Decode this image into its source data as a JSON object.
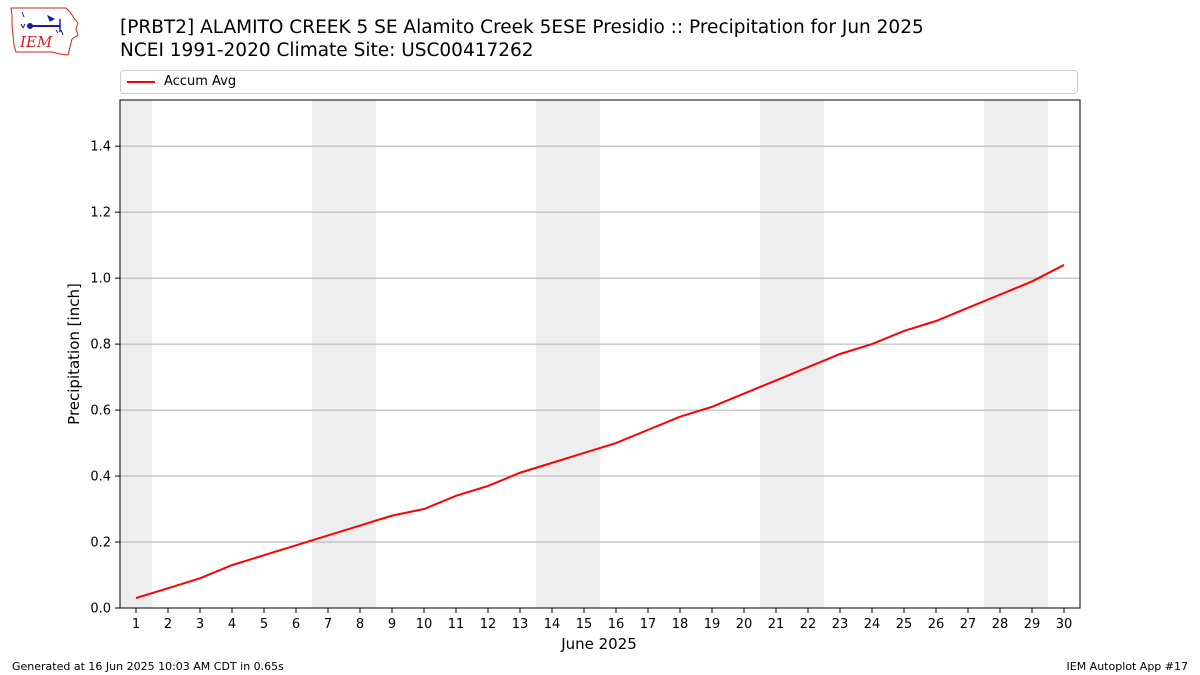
{
  "header": {
    "logo_text": "IEM",
    "title_line1": "[PRBT2] ALAMITO CREEK 5 SE Alamito Creek 5ESE Presidio :: Precipitation for Jun 2025",
    "title_line2": "NCEI 1991-2020 Climate Site: USC00417262"
  },
  "footer": {
    "generated": "Generated at 16 Jun 2025 10:03 AM CDT in 0.65s",
    "app": "IEM Autoplot App #17"
  },
  "colors": {
    "series": "#ff0000",
    "weekend_band": "#eeeeee",
    "grid": "#b0b0b0",
    "logo": "#cc2222",
    "logo_icons": "#1a1aaa"
  },
  "chart_data": {
    "type": "line",
    "title": "[PRBT2] ALAMITO CREEK 5 SE Alamito Creek 5ESE Presidio :: Precipitation for Jun 2025",
    "xlabel": "June 2025",
    "ylabel": "Precipitation [inch]",
    "xlim": [
      0.5,
      30.5
    ],
    "ylim": [
      0,
      1.54
    ],
    "x_ticks": [
      1,
      2,
      3,
      4,
      5,
      6,
      7,
      8,
      9,
      10,
      11,
      12,
      13,
      14,
      15,
      16,
      17,
      18,
      19,
      20,
      21,
      22,
      23,
      24,
      25,
      26,
      27,
      28,
      29,
      30
    ],
    "y_ticks": [
      0.0,
      0.2,
      0.4,
      0.6,
      0.8,
      1.0,
      1.2,
      1.4
    ],
    "y_tick_labels": [
      "0.0",
      "0.2",
      "0.4",
      "0.6",
      "0.8",
      "1.0",
      "1.2",
      "1.4"
    ],
    "grid": "horizontal",
    "legend_position": "top",
    "weekend_days": [
      1,
      7,
      8,
      14,
      15,
      21,
      22,
      28,
      29
    ],
    "series": [
      {
        "name": "Accum Avg",
        "x": [
          1,
          2,
          3,
          4,
          5,
          6,
          7,
          8,
          9,
          10,
          11,
          12,
          13,
          14,
          15,
          16,
          17,
          18,
          19,
          20,
          21,
          22,
          23,
          24,
          25,
          26,
          27,
          28,
          29,
          30
        ],
        "values": [
          0.03,
          0.06,
          0.09,
          0.13,
          0.16,
          0.19,
          0.22,
          0.25,
          0.28,
          0.3,
          0.34,
          0.37,
          0.41,
          0.44,
          0.47,
          0.5,
          0.54,
          0.58,
          0.61,
          0.65,
          0.69,
          0.73,
          0.77,
          0.8,
          0.84,
          0.87,
          0.91,
          0.95,
          0.99,
          1.04
        ]
      }
    ]
  }
}
